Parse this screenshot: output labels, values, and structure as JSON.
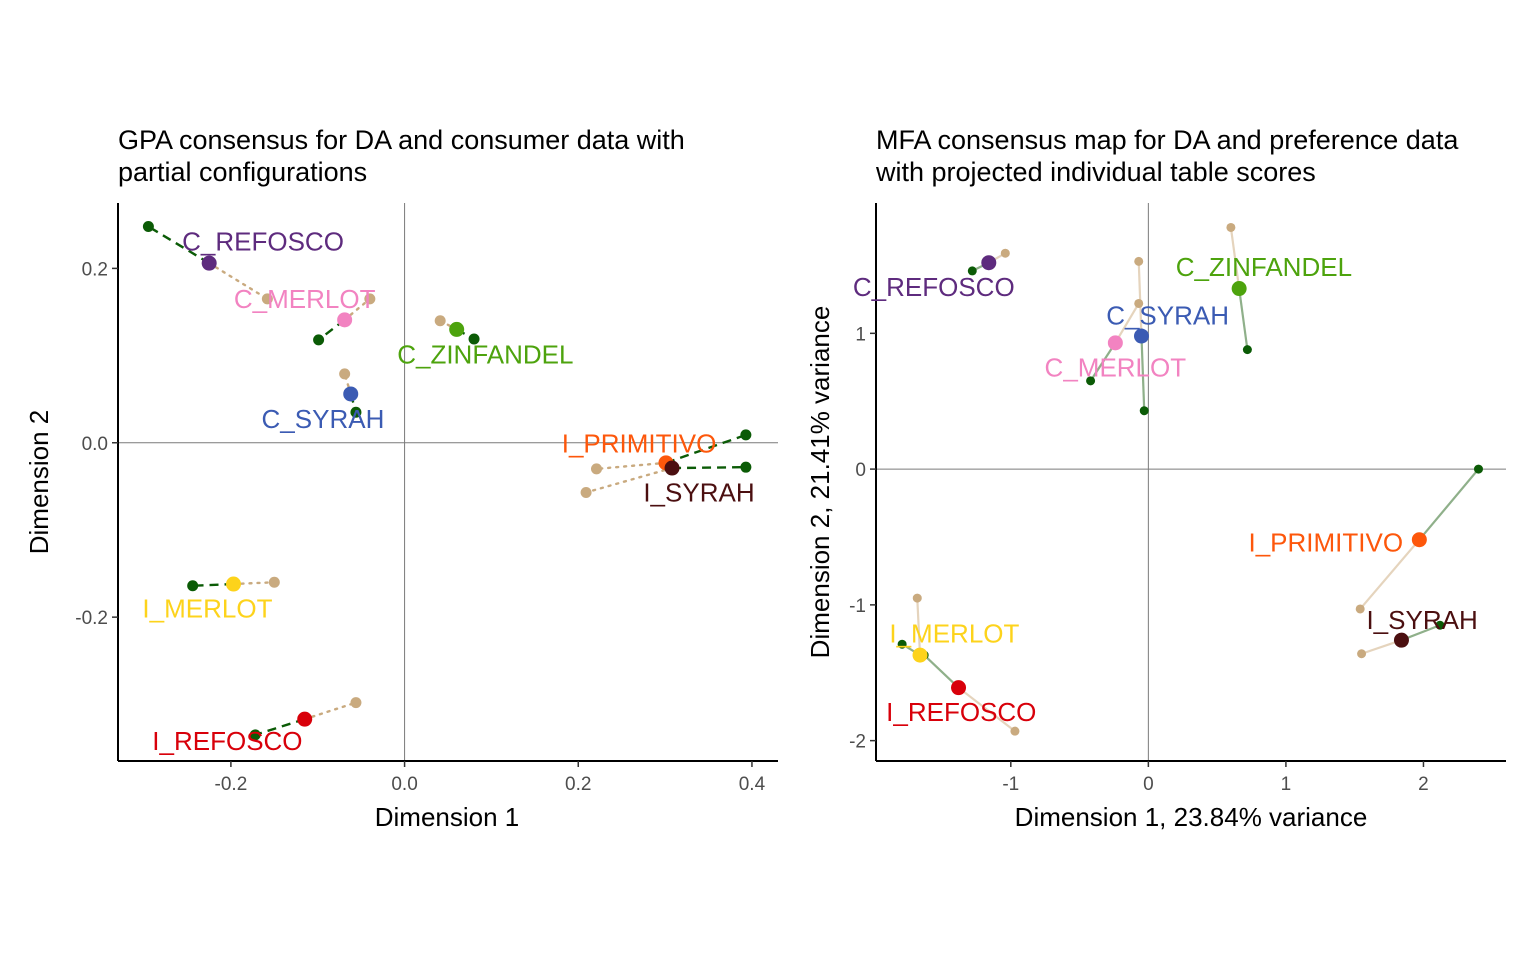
{
  "colors": {
    "C_REFOSCO": "#5e2b7e",
    "C_MERLOT": "#f283c1",
    "C_ZINFANDEL": "#4da30d",
    "C_SYRAH": "#3b5bb3",
    "I_PRIMITIVO": "#fd570b",
    "I_SYRAH": "#4b0f10",
    "I_MERLOT": "#fdd31b",
    "I_REFOSCO": "#d8000a",
    "da_partial": "#0b5b06",
    "consumer_partial": "#c9aa7f",
    "mfa_da_line": "#8fb08a",
    "mfa_pref_line": "#e5d4bd"
  },
  "chart_data": [
    {
      "type": "scatter",
      "title": [
        "GPA consensus for DA and consumer data with",
        "partial configurations"
      ],
      "xlabel": "Dimension 1",
      "ylabel": "Dimension 2",
      "xlim": [
        -0.33,
        0.43
      ],
      "ylim": [
        -0.365,
        0.275
      ],
      "xticks": [
        -0.2,
        0.0,
        0.2,
        0.4
      ],
      "xtick_labels": [
        "-0.2",
        "0.0",
        "0.2",
        "0.4"
      ],
      "yticks": [
        0.2,
        0.0,
        -0.2
      ],
      "ytick_labels": [
        "0.2",
        "0.0",
        "-0.2"
      ],
      "grid": false,
      "reference_lines": [
        0,
        0
      ],
      "da_line_style": "dashed",
      "consumer_line_style": "dotted",
      "points": [
        {
          "label": "C_REFOSCO",
          "x": -0.225,
          "y": 0.206,
          "da": [
            -0.295,
            0.248
          ],
          "consumer": [
            -0.158,
            0.165
          ],
          "label_pos": [
            -0.163,
            0.231
          ]
        },
        {
          "label": "C_MERLOT",
          "x": -0.069,
          "y": 0.141,
          "da": [
            -0.099,
            0.118
          ],
          "consumer": [
            -0.04,
            0.165
          ],
          "label_pos": [
            -0.115,
            0.165
          ]
        },
        {
          "label": "C_ZINFANDEL",
          "x": 0.06,
          "y": 0.13,
          "da": [
            0.08,
            0.119
          ],
          "consumer": [
            0.041,
            0.14
          ],
          "label_pos": [
            0.093,
            0.101
          ]
        },
        {
          "label": "C_SYRAH",
          "x": -0.062,
          "y": 0.056,
          "da": [
            -0.056,
            0.035
          ],
          "consumer": [
            -0.069,
            0.079
          ],
          "label_pos": [
            -0.094,
            0.027
          ]
        },
        {
          "label": "I_PRIMITIVO",
          "x": 0.301,
          "y": -0.023,
          "da": [
            0.393,
            0.009
          ],
          "consumer": [
            0.221,
            -0.03
          ],
          "label_pos": [
            0.27,
            -0.001
          ]
        },
        {
          "label": "I_SYRAH",
          "x": 0.308,
          "y": -0.029,
          "da": [
            0.393,
            -0.028
          ],
          "consumer": [
            0.209,
            -0.057
          ],
          "label_pos": [
            0.339,
            -0.057
          ]
        },
        {
          "label": "I_MERLOT",
          "x": -0.197,
          "y": -0.162,
          "da": [
            -0.244,
            -0.164
          ],
          "consumer": [
            -0.15,
            -0.16
          ],
          "label_pos": [
            -0.227,
            -0.19
          ]
        },
        {
          "label": "I_REFOSCO",
          "x": -0.115,
          "y": -0.317,
          "da": [
            -0.172,
            -0.335
          ],
          "consumer": [
            -0.056,
            -0.298
          ],
          "label_pos": [
            -0.204,
            -0.342
          ]
        }
      ]
    },
    {
      "type": "scatter",
      "title": [
        "MFA consensus map for DA and preference data",
        "with projected individual table scores"
      ],
      "xlabel": "Dimension 1, 23.84% variance",
      "ylabel": "Dimension 2, 21.41% variance",
      "xlim": [
        -1.98,
        2.6
      ],
      "ylim": [
        -2.15,
        1.96
      ],
      "xticks": [
        -1,
        0,
        1,
        2
      ],
      "xtick_labels": [
        "-1",
        "0",
        "1",
        "2"
      ],
      "yticks": [
        1,
        0,
        -1,
        -2
      ],
      "ytick_labels": [
        "1",
        "0",
        "-1",
        "-2"
      ],
      "grid": false,
      "reference_lines": [
        0,
        0
      ],
      "points": [
        {
          "label": "C_REFOSCO",
          "x": -1.16,
          "y": 1.52,
          "da": [
            -1.28,
            1.46
          ],
          "pref": [
            -1.04,
            1.59
          ],
          "label_pos": [
            -1.56,
            1.34
          ]
        },
        {
          "label": "C_ZINFANDEL",
          "x": 0.66,
          "y": 1.33,
          "da": [
            0.72,
            0.88
          ],
          "pref": [
            0.6,
            1.78
          ],
          "label_pos": [
            0.84,
            1.49
          ]
        },
        {
          "label": "C_SYRAH",
          "x": -0.05,
          "y": 0.98,
          "da": [
            -0.03,
            0.43
          ],
          "pref": [
            -0.07,
            1.53
          ],
          "label_pos": [
            0.14,
            1.13
          ]
        },
        {
          "label": "C_MERLOT",
          "x": -0.24,
          "y": 0.93,
          "da": [
            -0.42,
            0.65
          ],
          "pref": [
            -0.07,
            1.22
          ],
          "label_pos": [
            -0.24,
            0.75
          ]
        },
        {
          "label": "I_PRIMITIVO",
          "x": 1.97,
          "y": -0.52,
          "da": [
            2.4,
            0.0
          ],
          "pref": [
            1.54,
            -1.03
          ],
          "label_pos": [
            1.29,
            -0.54
          ]
        },
        {
          "label": "I_SYRAH",
          "x": 1.84,
          "y": -1.26,
          "da": [
            2.12,
            -1.15
          ],
          "pref": [
            1.55,
            -1.36
          ],
          "label_pos": [
            1.99,
            -1.11
          ]
        },
        {
          "label": "I_MERLOT",
          "x": -1.66,
          "y": -1.37,
          "da": [
            -1.79,
            -1.29
          ],
          "pref": [
            -1.68,
            -0.95
          ],
          "label_pos": [
            -1.41,
            -1.21
          ]
        },
        {
          "label": "I_REFOSCO",
          "x": -1.38,
          "y": -1.61,
          "da": [
            -1.63,
            -1.37
          ],
          "pref": [
            -0.97,
            -1.93
          ],
          "label_pos": [
            -1.36,
            -1.79
          ]
        }
      ]
    }
  ]
}
